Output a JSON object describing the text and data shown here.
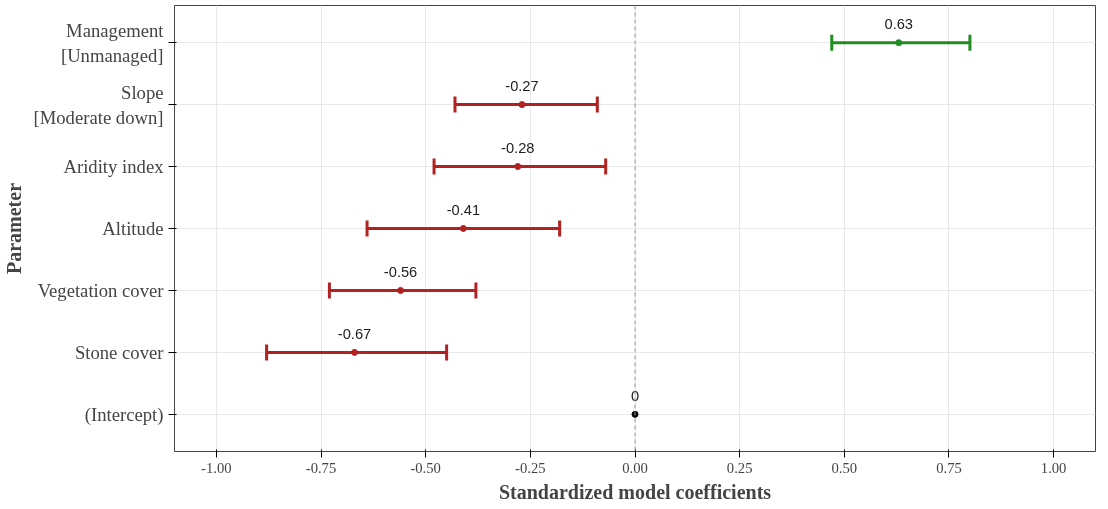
{
  "chart_data": {
    "type": "scatter",
    "orientation": "horizontal",
    "xlabel": "Standardized model coefficients",
    "ylabel": "Parameter",
    "categories": [
      "Management\n[Unmanaged]",
      "Slope\n[Moderate down]",
      "Aridity index",
      "Altitude",
      "Vegetation cover",
      "Stone cover",
      "(Intercept)"
    ],
    "values": [
      0.63,
      -0.27,
      -0.28,
      -0.41,
      -0.56,
      -0.67,
      0
    ],
    "errors": [
      [
        0.47,
        0.8
      ],
      [
        -0.43,
        -0.09
      ],
      [
        -0.48,
        -0.07
      ],
      [
        -0.64,
        -0.18
      ],
      [
        -0.73,
        -0.38
      ],
      [
        -0.88,
        -0.45
      ],
      null
    ],
    "colors": [
      "#228b22",
      "#b22222",
      "#b22222",
      "#b22222",
      "#b22222",
      "#b22222",
      "#000000"
    ],
    "data_labels": true,
    "xlim": [
      -1.1,
      1.1
    ],
    "xticks": [
      {
        "value": -1,
        "label": "-1.00"
      },
      {
        "value": -0.75,
        "label": "-0.75"
      },
      {
        "value": -0.5,
        "label": "-0.50"
      },
      {
        "value": -0.25,
        "label": "-0.25"
      },
      {
        "value": 0,
        "label": "0.00"
      },
      {
        "value": 0.25,
        "label": "0.25"
      },
      {
        "value": 0.5,
        "label": "0.50"
      },
      {
        "value": 0.75,
        "label": "0.75"
      },
      {
        "value": 1,
        "label": "1.00"
      }
    ],
    "ref_lines": [
      {
        "axis": "x",
        "value": 0,
        "color": "#999999",
        "line_style": "dashed"
      }
    ],
    "grid": true,
    "marker": "circle"
  }
}
